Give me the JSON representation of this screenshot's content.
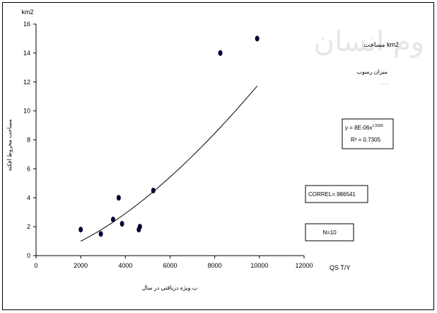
{
  "chart_data": {
    "type": "scatter",
    "y_unit_label": "km2",
    "x_unit_label": "QS T/Y",
    "xlabel": "ب ويژه درياقتي در سال",
    "ylabel": "مساحت مخروط افکنه",
    "xlim": [
      0,
      12000
    ],
    "ylim": [
      0,
      16
    ],
    "x_ticks": [
      0,
      2000,
      4000,
      6000,
      8000,
      10000,
      12000
    ],
    "y_ticks": [
      0,
      2,
      4,
      6,
      8,
      10,
      12,
      14,
      16
    ],
    "x_tick_labels": [
      "0",
      "2000",
      "4000",
      "6000",
      "8000",
      "10000",
      "12000"
    ],
    "y_tick_labels": [
      "0",
      "2",
      "4",
      "6",
      "8",
      "10",
      "12",
      "14",
      "16"
    ],
    "grid": false,
    "points": {
      "x": [
        2000,
        2900,
        3450,
        3700,
        3850,
        4600,
        4650,
        5250,
        8250,
        9900
      ],
      "y": [
        1.8,
        1.5,
        2.5,
        4.0,
        2.2,
        1.8,
        2.0,
        4.5,
        14.0,
        15.0
      ]
    },
    "trendline": {
      "type": "power",
      "x_range": [
        2000,
        9900
      ],
      "coefficient": 8.5e-06,
      "exponent": 1.5366
    },
    "annotations": {
      "equation_line1": "y = 8E-06x",
      "equation_exponent": "1.5366",
      "r_squared": "R² = 0.7305",
      "correl": "CORREL=.986541",
      "n": "N=10",
      "legend_text_1": "مساحت km2",
      "legend_text_2": "ميزان رسوب",
      "legend_text_3": "٠ . . ٠",
      "watermark": "وم انسان"
    }
  }
}
